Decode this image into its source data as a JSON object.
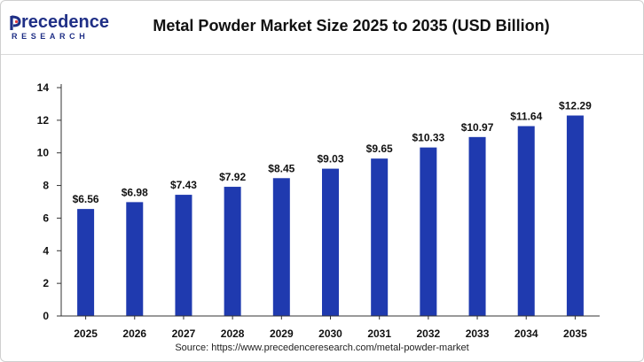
{
  "header": {
    "logo_primary": "recedence",
    "logo_secondary": "RESEARCH",
    "title": "Metal Powder Market Size 2025 to 2035 (USD Billion)"
  },
  "chart_data": {
    "type": "bar",
    "title": "Metal Powder Market Size 2025 to 2035 (USD Billion)",
    "xlabel": "",
    "ylabel": "",
    "categories": [
      "2025",
      "2026",
      "2027",
      "2028",
      "2029",
      "2030",
      "2031",
      "2032",
      "2033",
      "2034",
      "2035"
    ],
    "values": [
      6.56,
      6.98,
      7.43,
      7.92,
      8.45,
      9.03,
      9.65,
      10.33,
      10.97,
      11.64,
      12.29
    ],
    "value_labels": [
      "$6.56",
      "$6.98",
      "$7.43",
      "$7.92",
      "$8.45",
      "$9.03",
      "$9.65",
      "$10.33",
      "$10.97",
      "$11.64",
      "$12.29"
    ],
    "ylim": [
      0,
      14
    ],
    "yticks": [
      "0",
      "2",
      "4",
      "6",
      "8",
      "10",
      "12",
      "14"
    ],
    "grid": false,
    "legend": "none",
    "bar_color": "#1f3aaf"
  },
  "footer": {
    "source": "Source: https://www.precedenceresearch.com/metal-powder-market"
  }
}
